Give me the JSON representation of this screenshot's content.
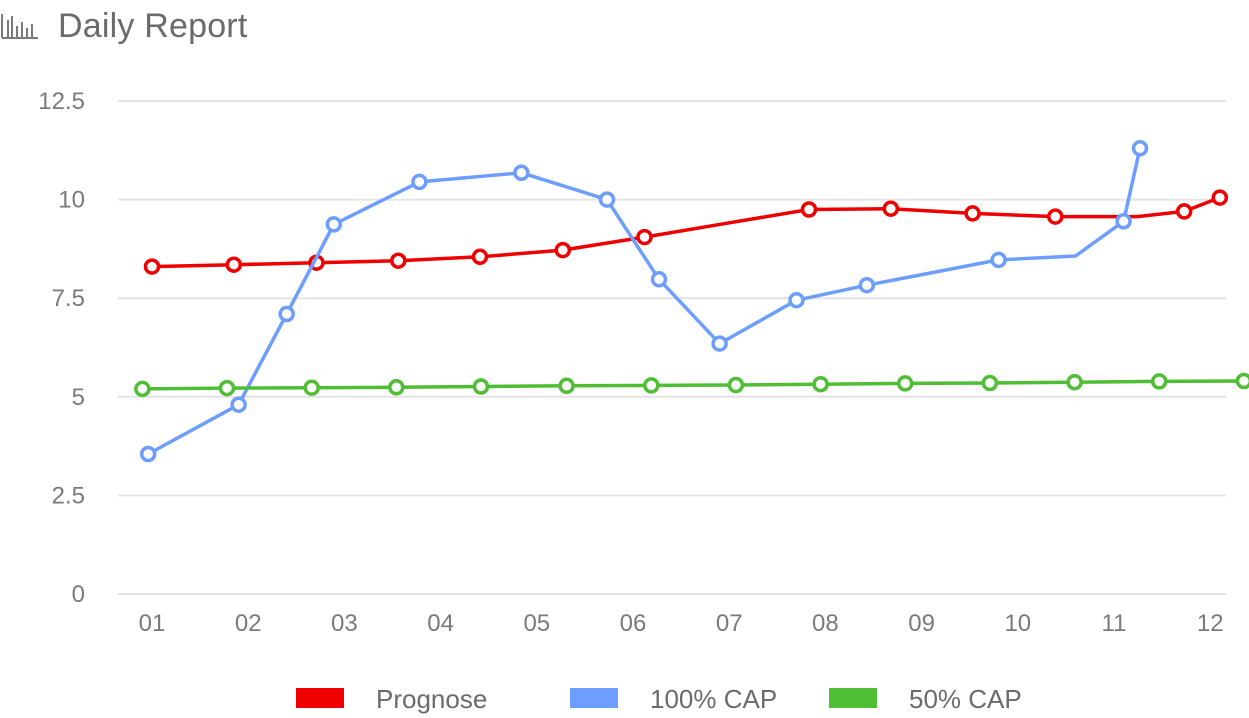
{
  "header": {
    "title": "Daily Report",
    "icon": "bar-chart-icon"
  },
  "chart_data": {
    "type": "line",
    "title": "Daily Report",
    "xlabel": "",
    "ylabel": "",
    "categories": [
      "01",
      "02",
      "03",
      "04",
      "05",
      "06",
      "07",
      "08",
      "09",
      "10",
      "11",
      "12"
    ],
    "y_ticks": [
      "0",
      "2.5",
      "5",
      "7.5",
      "10",
      "12.5"
    ],
    "ylim": [
      0,
      12.5
    ],
    "grid": true,
    "legend_position": "bottom",
    "series": [
      {
        "name": "Prognose",
        "color": "#ee0000",
        "x": [
          0.0,
          0.85,
          1.71,
          2.56,
          3.41,
          4.27,
          5.12,
          5.97,
          6.83,
          7.68,
          8.53,
          9.39,
          10.24,
          10.73,
          11.1
        ],
        "y": [
          8.3,
          8.35,
          8.4,
          8.45,
          8.55,
          8.72,
          9.05,
          9.4,
          9.75,
          9.77,
          9.65,
          9.57,
          9.57,
          9.7,
          10.05
        ],
        "markers": [
          true,
          true,
          true,
          true,
          true,
          true,
          true,
          false,
          true,
          true,
          true,
          true,
          false,
          true,
          true
        ]
      },
      {
        "name": "100% CAP",
        "color": "#6d9eff",
        "x": [
          -0.04,
          0.9,
          1.4,
          1.89,
          2.78,
          3.84,
          4.73,
          5.27,
          5.9,
          6.7,
          7.43,
          8.8,
          9.6,
          10.1,
          10.27
        ],
        "y": [
          3.55,
          4.8,
          7.1,
          9.37,
          10.45,
          10.68,
          10.0,
          7.98,
          6.35,
          7.45,
          7.83,
          8.47,
          8.57,
          9.45,
          11.3
        ],
        "markers": [
          true,
          true,
          true,
          true,
          true,
          true,
          true,
          true,
          true,
          true,
          true,
          true,
          false,
          true,
          true
        ]
      },
      {
        "name": "50% CAP",
        "color": "#4fbe34",
        "x": [
          -0.1,
          0.78,
          1.66,
          2.54,
          3.42,
          4.31,
          5.19,
          6.07,
          6.95,
          7.83,
          8.71,
          9.59,
          10.47,
          11.35
        ],
        "y": [
          5.2,
          5.22,
          5.23,
          5.24,
          5.26,
          5.28,
          5.29,
          5.3,
          5.32,
          5.34,
          5.35,
          5.37,
          5.39,
          5.4
        ],
        "markers": [
          true,
          true,
          true,
          true,
          true,
          true,
          true,
          true,
          true,
          true,
          true,
          true,
          true,
          true
        ]
      }
    ]
  }
}
